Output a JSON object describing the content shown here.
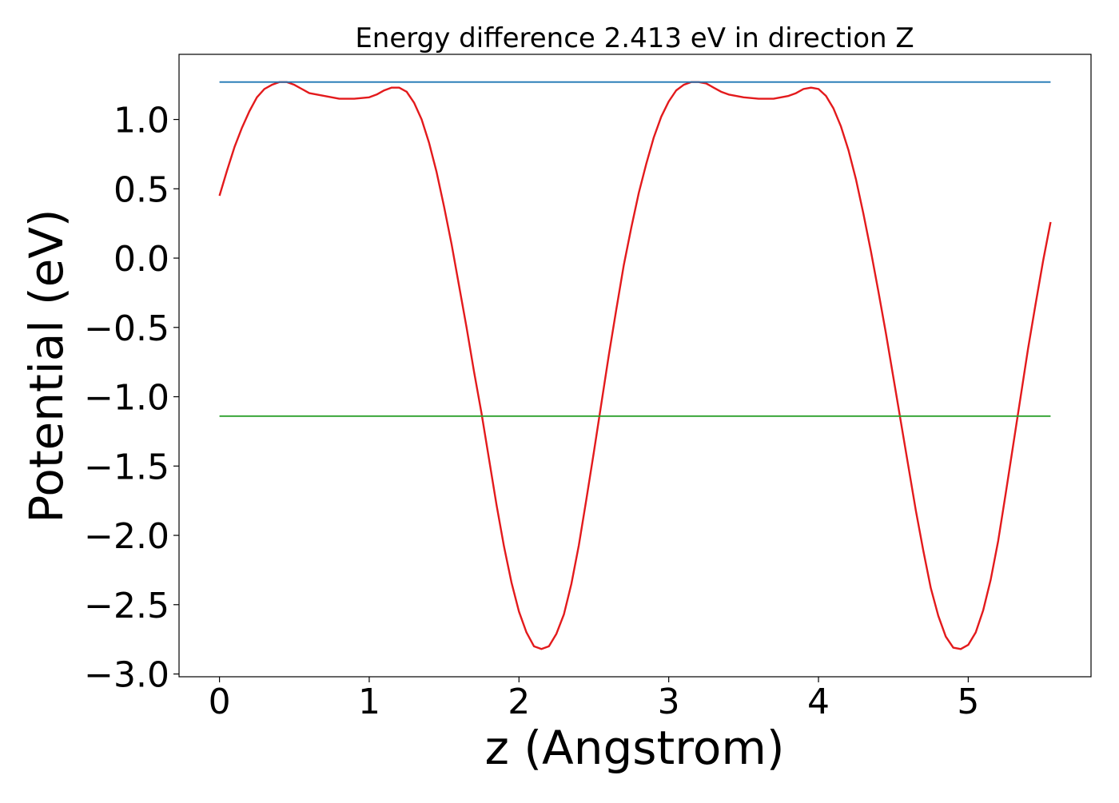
{
  "chart_data": {
    "type": "line",
    "title": "Energy difference 2.413 eV in direction Z",
    "xlabel": "z (Angstrom)",
    "ylabel": "Potential (eV)",
    "xlim": [
      -0.27,
      5.82
    ],
    "ylim": [
      -3.02,
      1.47
    ],
    "xticks": [
      0,
      1,
      2,
      3,
      4,
      5
    ],
    "xtick_labels": [
      "0",
      "1",
      "2",
      "3",
      "4",
      "5"
    ],
    "yticks": [
      -3.0,
      -2.5,
      -2.0,
      -1.5,
      -1.0,
      -0.5,
      0.0,
      0.5,
      1.0
    ],
    "ytick_labels": [
      "−3.0",
      "−2.5",
      "−2.0",
      "−1.5",
      "−1.0",
      "−0.5",
      "0.0",
      "0.5",
      "1.0"
    ],
    "grid": false,
    "series": [
      {
        "kind": "curve",
        "color": "#e31a1c",
        "x": [
          0.0,
          0.05,
          0.1,
          0.15,
          0.2,
          0.25,
          0.3,
          0.35,
          0.4,
          0.45,
          0.5,
          0.55,
          0.6,
          0.7,
          0.8,
          0.9,
          1.0,
          1.05,
          1.1,
          1.15,
          1.2,
          1.25,
          1.3,
          1.35,
          1.4,
          1.45,
          1.5,
          1.55,
          1.6,
          1.65,
          1.7,
          1.75,
          1.8,
          1.85,
          1.9,
          1.95,
          2.0,
          2.05,
          2.1,
          2.15,
          2.2,
          2.25,
          2.3,
          2.35,
          2.4,
          2.45,
          2.5,
          2.55,
          2.6,
          2.65,
          2.7,
          2.75,
          2.8,
          2.85,
          2.9,
          2.95,
          3.0,
          3.05,
          3.1,
          3.15,
          3.2,
          3.25,
          3.3,
          3.35,
          3.4,
          3.5,
          3.6,
          3.7,
          3.8,
          3.85,
          3.9,
          3.95,
          4.0,
          4.05,
          4.1,
          4.15,
          4.2,
          4.25,
          4.3,
          4.35,
          4.4,
          4.45,
          4.5,
          4.55,
          4.6,
          4.65,
          4.7,
          4.75,
          4.8,
          4.85,
          4.9,
          4.95,
          5.0,
          5.05,
          5.1,
          5.15,
          5.2,
          5.25,
          5.3,
          5.35,
          5.4,
          5.45,
          5.5,
          5.55
        ],
        "y": [
          0.45,
          0.63,
          0.8,
          0.94,
          1.06,
          1.16,
          1.22,
          1.25,
          1.27,
          1.27,
          1.25,
          1.22,
          1.19,
          1.17,
          1.15,
          1.15,
          1.16,
          1.18,
          1.21,
          1.23,
          1.23,
          1.2,
          1.12,
          1.0,
          0.83,
          0.62,
          0.37,
          0.1,
          -0.2,
          -0.5,
          -0.82,
          -1.12,
          -1.45,
          -1.78,
          -2.08,
          -2.34,
          -2.55,
          -2.7,
          -2.8,
          -2.82,
          -2.8,
          -2.71,
          -2.57,
          -2.35,
          -2.07,
          -1.74,
          -1.4,
          -1.05,
          -0.7,
          -0.37,
          -0.05,
          0.22,
          0.47,
          0.68,
          0.87,
          1.02,
          1.13,
          1.21,
          1.25,
          1.27,
          1.27,
          1.26,
          1.23,
          1.2,
          1.18,
          1.16,
          1.15,
          1.15,
          1.17,
          1.19,
          1.22,
          1.23,
          1.22,
          1.17,
          1.08,
          0.95,
          0.78,
          0.57,
          0.32,
          0.05,
          -0.24,
          -0.54,
          -0.86,
          -1.18,
          -1.5,
          -1.82,
          -2.11,
          -2.38,
          -2.58,
          -2.73,
          -2.81,
          -2.82,
          -2.79,
          -2.7,
          -2.54,
          -2.32,
          -2.04,
          -1.7,
          -1.35,
          -1.0,
          -0.65,
          -0.33,
          -0.02,
          0.26
        ]
      },
      {
        "kind": "hline",
        "color": "#1f77b4",
        "x": [
          0.0,
          5.55
        ],
        "y": [
          1.27,
          1.27
        ]
      },
      {
        "kind": "hline",
        "color": "#2ca02c",
        "x": [
          0.0,
          5.55
        ],
        "y": [
          -1.14,
          -1.14
        ]
      }
    ]
  }
}
